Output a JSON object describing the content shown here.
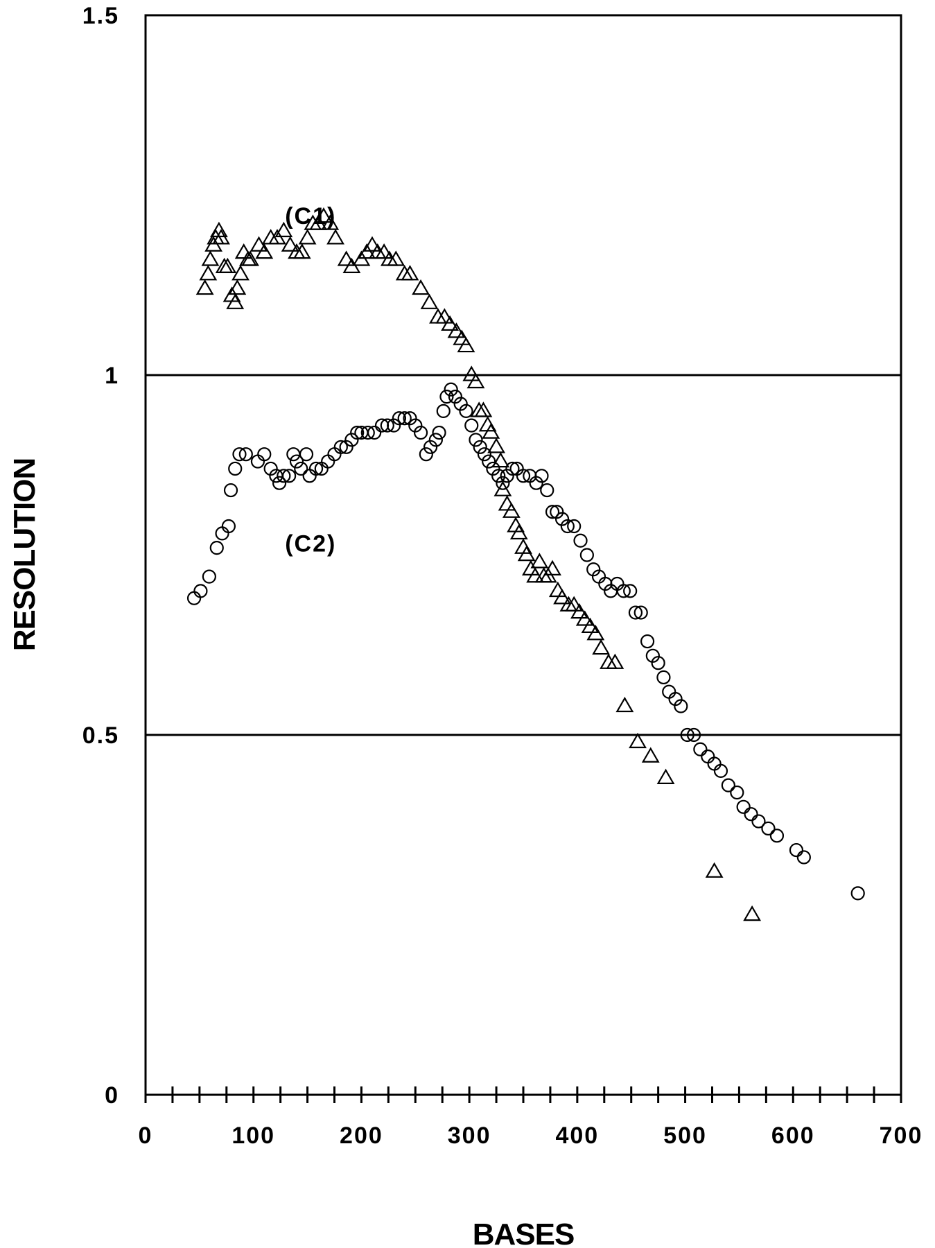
{
  "chart_data": {
    "type": "scatter",
    "title": "",
    "xlabel": "BASES",
    "ylabel": "RESOLUTION",
    "xlim": [
      0,
      700
    ],
    "ylim": [
      0,
      1.5
    ],
    "x_ticks": [
      0,
      100,
      200,
      300,
      400,
      500,
      600,
      700
    ],
    "y_ticks": [
      {
        "value": 0,
        "label": "0"
      },
      {
        "value": 0.5,
        "label": "0.5"
      },
      {
        "value": 1,
        "label": "1"
      },
      {
        "value": 1.5,
        "label": "1.5"
      }
    ],
    "x_minor_step": 25,
    "reference_lines": [
      0.5,
      1
    ],
    "grid": false,
    "legend": "none",
    "annotations": [
      {
        "text": "(C1)",
        "x": 153,
        "y": 1.21
      },
      {
        "text": "(C2)",
        "x": 153,
        "y": 0.755
      }
    ],
    "series": [
      {
        "marker": "triangle",
        "points": [
          [
            55,
            1.12
          ],
          [
            58,
            1.14
          ],
          [
            60,
            1.16
          ],
          [
            63,
            1.18
          ],
          [
            65,
            1.19
          ],
          [
            68,
            1.2
          ],
          [
            70,
            1.19
          ],
          [
            73,
            1.15
          ],
          [
            76,
            1.15
          ],
          [
            80,
            1.11
          ],
          [
            83,
            1.1
          ],
          [
            85,
            1.12
          ],
          [
            88,
            1.14
          ],
          [
            91,
            1.17
          ],
          [
            95,
            1.16
          ],
          [
            97,
            1.16
          ],
          [
            105,
            1.18
          ],
          [
            110,
            1.17
          ],
          [
            116,
            1.19
          ],
          [
            122,
            1.19
          ],
          [
            128,
            1.2
          ],
          [
            134,
            1.18
          ],
          [
            140,
            1.17
          ],
          [
            145,
            1.17
          ],
          [
            150,
            1.19
          ],
          [
            155,
            1.21
          ],
          [
            160,
            1.21
          ],
          [
            165,
            1.22
          ],
          [
            171,
            1.21
          ],
          [
            176,
            1.19
          ],
          [
            186,
            1.16
          ],
          [
            191,
            1.15
          ],
          [
            200,
            1.16
          ],
          [
            205,
            1.17
          ],
          [
            210,
            1.18
          ],
          [
            215,
            1.17
          ],
          [
            221,
            1.17
          ],
          [
            226,
            1.16
          ],
          [
            232,
            1.16
          ],
          [
            240,
            1.14
          ],
          [
            245,
            1.14
          ],
          [
            255,
            1.12
          ],
          [
            263,
            1.1
          ],
          [
            271,
            1.08
          ],
          [
            277,
            1.08
          ],
          [
            282,
            1.07
          ],
          [
            288,
            1.06
          ],
          [
            293,
            1.05
          ],
          [
            297,
            1.04
          ],
          [
            302,
            1.0
          ],
          [
            306,
            0.99
          ],
          [
            309,
            0.95
          ],
          [
            313,
            0.95
          ],
          [
            317,
            0.93
          ],
          [
            320,
            0.92
          ],
          [
            325,
            0.9
          ],
          [
            329,
            0.88
          ],
          [
            331,
            0.84
          ],
          [
            335,
            0.82
          ],
          [
            339,
            0.81
          ],
          [
            343,
            0.79
          ],
          [
            346,
            0.78
          ],
          [
            350,
            0.76
          ],
          [
            353,
            0.75
          ],
          [
            357,
            0.73
          ],
          [
            361,
            0.72
          ],
          [
            365,
            0.74
          ],
          [
            369,
            0.72
          ],
          [
            373,
            0.72
          ],
          [
            377,
            0.73
          ],
          [
            382,
            0.7
          ],
          [
            386,
            0.69
          ],
          [
            392,
            0.68
          ],
          [
            397,
            0.68
          ],
          [
            402,
            0.67
          ],
          [
            407,
            0.66
          ],
          [
            412,
            0.65
          ],
          [
            417,
            0.64
          ],
          [
            422,
            0.62
          ],
          [
            429,
            0.6
          ],
          [
            435,
            0.6
          ],
          [
            444,
            0.54
          ],
          [
            456,
            0.49
          ],
          [
            468,
            0.47
          ],
          [
            482,
            0.44
          ],
          [
            527,
            0.31
          ],
          [
            562,
            0.25
          ]
        ]
      },
      {
        "marker": "circle",
        "points": [
          [
            45,
            0.69
          ],
          [
            51,
            0.7
          ],
          [
            59,
            0.72
          ],
          [
            66,
            0.76
          ],
          [
            71,
            0.78
          ],
          [
            77,
            0.79
          ],
          [
            79,
            0.84
          ],
          [
            83,
            0.87
          ],
          [
            87,
            0.89
          ],
          [
            93,
            0.89
          ],
          [
            104,
            0.88
          ],
          [
            110,
            0.89
          ],
          [
            116,
            0.87
          ],
          [
            121,
            0.86
          ],
          [
            124,
            0.85
          ],
          [
            128,
            0.86
          ],
          [
            133,
            0.86
          ],
          [
            137,
            0.89
          ],
          [
            140,
            0.88
          ],
          [
            144,
            0.87
          ],
          [
            149,
            0.89
          ],
          [
            152,
            0.86
          ],
          [
            158,
            0.87
          ],
          [
            163,
            0.87
          ],
          [
            169,
            0.88
          ],
          [
            175,
            0.89
          ],
          [
            181,
            0.9
          ],
          [
            186,
            0.9
          ],
          [
            191,
            0.91
          ],
          [
            196,
            0.92
          ],
          [
            200,
            0.92
          ],
          [
            206,
            0.92
          ],
          [
            212,
            0.92
          ],
          [
            219,
            0.93
          ],
          [
            224,
            0.93
          ],
          [
            230,
            0.93
          ],
          [
            235,
            0.94
          ],
          [
            240,
            0.94
          ],
          [
            245,
            0.94
          ],
          [
            250,
            0.93
          ],
          [
            255,
            0.92
          ],
          [
            260,
            0.89
          ],
          [
            264,
            0.9
          ],
          [
            269,
            0.91
          ],
          [
            272,
            0.92
          ],
          [
            276,
            0.95
          ],
          [
            279,
            0.97
          ],
          [
            283,
            0.98
          ],
          [
            287,
            0.97
          ],
          [
            292,
            0.96
          ],
          [
            297,
            0.95
          ],
          [
            302,
            0.93
          ],
          [
            306,
            0.91
          ],
          [
            310,
            0.9
          ],
          [
            314,
            0.89
          ],
          [
            318,
            0.88
          ],
          [
            322,
            0.87
          ],
          [
            327,
            0.86
          ],
          [
            331,
            0.85
          ],
          [
            335,
            0.86
          ],
          [
            340,
            0.87
          ],
          [
            344,
            0.87
          ],
          [
            350,
            0.86
          ],
          [
            356,
            0.86
          ],
          [
            362,
            0.85
          ],
          [
            367,
            0.86
          ],
          [
            372,
            0.84
          ],
          [
            377,
            0.81
          ],
          [
            381,
            0.81
          ],
          [
            386,
            0.8
          ],
          [
            391,
            0.79
          ],
          [
            397,
            0.79
          ],
          [
            403,
            0.77
          ],
          [
            409,
            0.75
          ],
          [
            415,
            0.73
          ],
          [
            420,
            0.72
          ],
          [
            426,
            0.71
          ],
          [
            431,
            0.7
          ],
          [
            437,
            0.71
          ],
          [
            443,
            0.7
          ],
          [
            449,
            0.7
          ],
          [
            454,
            0.67
          ],
          [
            459,
            0.67
          ],
          [
            465,
            0.63
          ],
          [
            470,
            0.61
          ],
          [
            475,
            0.6
          ],
          [
            480,
            0.58
          ],
          [
            485,
            0.56
          ],
          [
            491,
            0.55
          ],
          [
            496,
            0.54
          ],
          [
            502,
            0.5
          ],
          [
            508,
            0.5
          ],
          [
            514,
            0.48
          ],
          [
            521,
            0.47
          ],
          [
            527,
            0.46
          ],
          [
            533,
            0.45
          ],
          [
            540,
            0.43
          ],
          [
            548,
            0.42
          ],
          [
            554,
            0.4
          ],
          [
            561,
            0.39
          ],
          [
            568,
            0.38
          ],
          [
            577,
            0.37
          ],
          [
            585,
            0.36
          ],
          [
            603,
            0.34
          ],
          [
            610,
            0.33
          ],
          [
            660,
            0.28
          ]
        ]
      }
    ]
  }
}
